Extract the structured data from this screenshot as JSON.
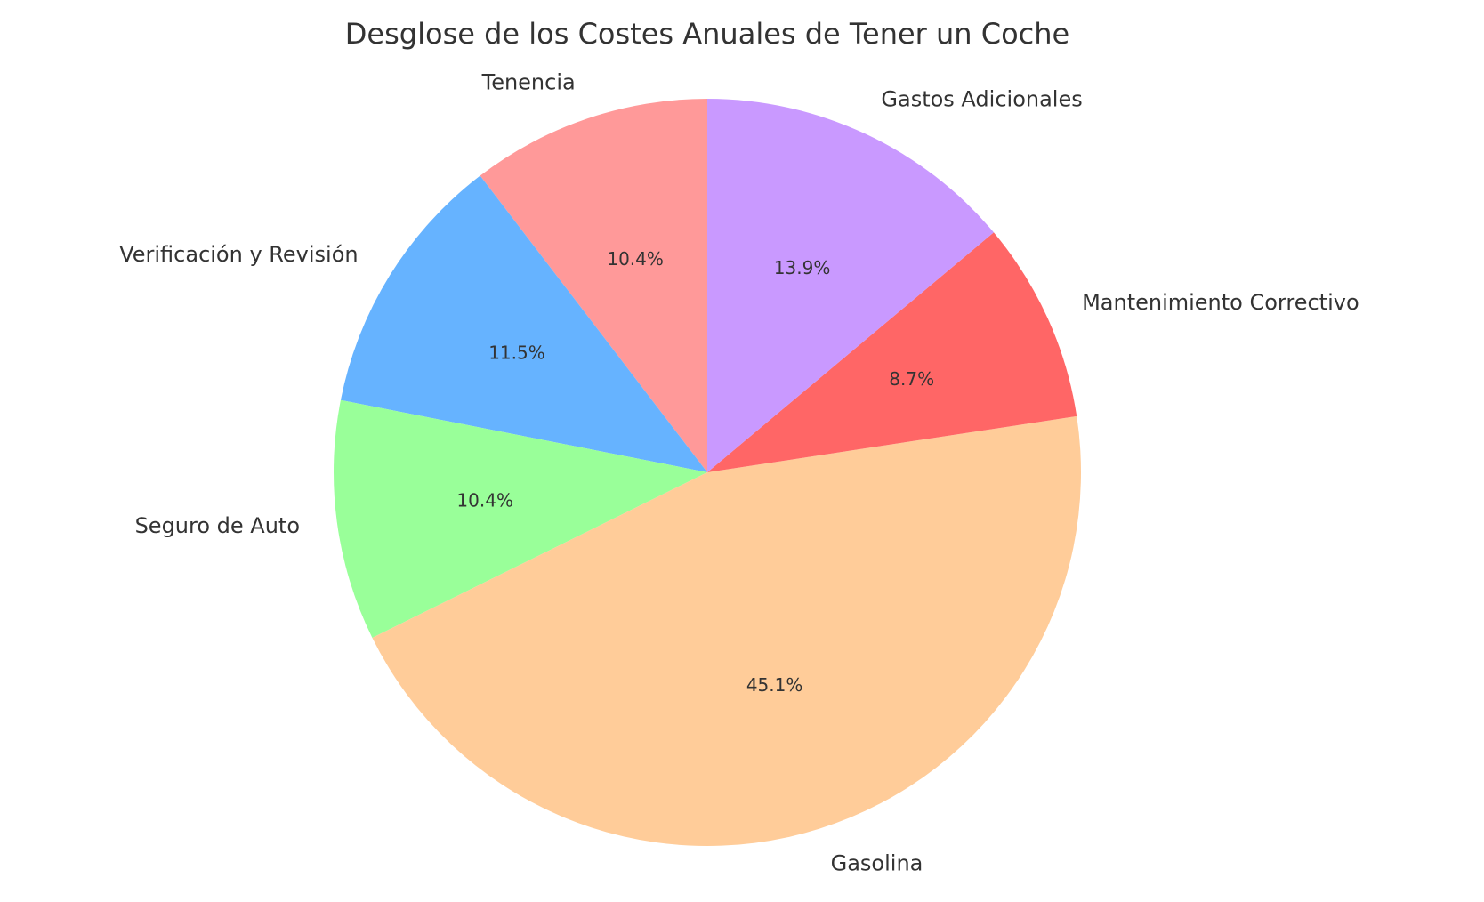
{
  "chart_data": {
    "type": "pie",
    "title": "Desglose de los Costes Anuales de Tener un Coche",
    "categories": [
      "Tenencia",
      "Verificación y Revisión",
      "Seguro de Auto",
      "Gasolina",
      "Mantenimiento Correctivo",
      "Gastos Adicionales"
    ],
    "values": [
      10.4,
      11.5,
      10.4,
      45.1,
      8.7,
      13.9
    ],
    "value_labels": [
      "10.4%",
      "11.5%",
      "10.4%",
      "45.1%",
      "8.7%",
      "13.9%"
    ],
    "colors": [
      "#ff9999",
      "#66b3ff",
      "#99ff99",
      "#ffcc99",
      "#ff6666",
      "#c999ff"
    ]
  }
}
